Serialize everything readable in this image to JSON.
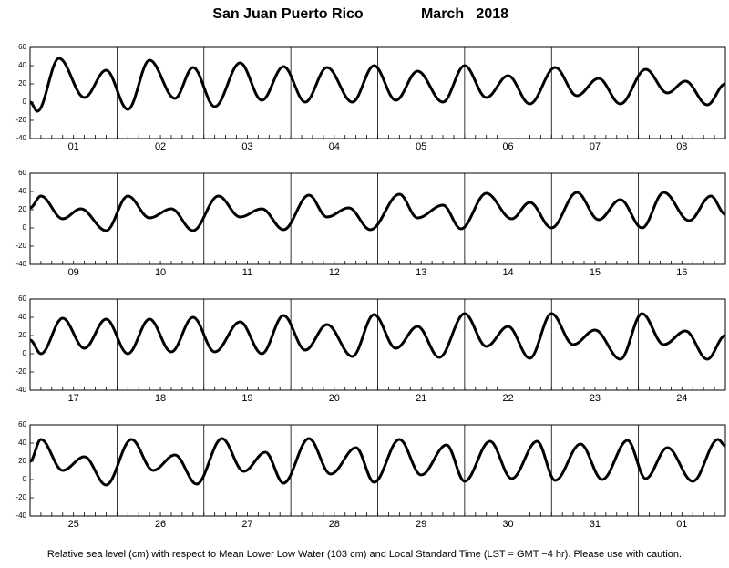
{
  "title": "San Juan Puerto Rico",
  "month": "March   2018",
  "note": "Relative sea level (cm) with respect to Mean Lower Low Water (103 cm) and Local Standard Time (LST = GMT −4 hr). Please use with caution.",
  "chart_data": [
    {
      "type": "line",
      "categories": [
        "01",
        "02",
        "03",
        "04",
        "05",
        "06",
        "07",
        "08"
      ],
      "x": [
        0,
        2,
        8,
        15,
        21,
        27,
        33,
        40,
        45,
        51,
        58,
        64,
        70,
        76,
        82,
        89,
        95,
        101,
        107,
        114,
        120,
        126,
        132,
        138,
        145,
        151,
        157,
        163,
        170,
        176,
        181,
        187,
        192
      ],
      "values": [
        0,
        -10,
        48,
        5,
        35,
        -8,
        46,
        4,
        38,
        -5,
        43,
        2,
        39,
        0,
        38,
        0,
        40,
        2,
        34,
        0,
        40,
        5,
        29,
        -2,
        38,
        7,
        26,
        -2,
        36,
        10,
        23,
        -3,
        20
      ],
      "xlim": [
        0,
        192
      ],
      "ylim": [
        -40,
        60
      ],
      "yticks": [
        -40,
        -20,
        0,
        20,
        40,
        60
      ],
      "color": "#000000"
    },
    {
      "type": "line",
      "categories": [
        "09",
        "10",
        "11",
        "12",
        "13",
        "14",
        "15",
        "16"
      ],
      "x": [
        0,
        3,
        9,
        14,
        21,
        27,
        33,
        39,
        45,
        52,
        58,
        64,
        70,
        77,
        82,
        88,
        94,
        102,
        107,
        114,
        119,
        126,
        133,
        138,
        144,
        151,
        157,
        163,
        169,
        175,
        182,
        188,
        192
      ],
      "values": [
        22,
        35,
        10,
        21,
        -3,
        35,
        11,
        21,
        -3,
        35,
        12,
        21,
        -2,
        36,
        12,
        22,
        -2,
        37,
        11,
        25,
        -1,
        38,
        10,
        28,
        0,
        39,
        9,
        31,
        0,
        39,
        8,
        35,
        15
      ],
      "xlim": [
        0,
        192
      ],
      "ylim": [
        -40,
        60
      ],
      "yticks": [
        -40,
        -20,
        0,
        20,
        40,
        60
      ],
      "color": "#000000"
    },
    {
      "type": "line",
      "categories": [
        "17",
        "18",
        "19",
        "20",
        "21",
        "22",
        "23",
        "24"
      ],
      "x": [
        0,
        3,
        9,
        15,
        21,
        27,
        33,
        39,
        45,
        51,
        58,
        64,
        70,
        76,
        82,
        89,
        95,
        101,
        107,
        113,
        120,
        126,
        132,
        138,
        144,
        150,
        156,
        163,
        169,
        175,
        181,
        187,
        192
      ],
      "values": [
        15,
        0,
        39,
        6,
        38,
        0,
        38,
        2,
        40,
        2,
        35,
        0,
        42,
        4,
        32,
        -3,
        43,
        6,
        30,
        -4,
        44,
        8,
        30,
        -5,
        44,
        10,
        26,
        -6,
        44,
        10,
        25,
        -6,
        20
      ],
      "xlim": [
        0,
        192
      ],
      "ylim": [
        -40,
        60
      ],
      "yticks": [
        -40,
        -20,
        0,
        20,
        40,
        60
      ],
      "color": "#000000"
    },
    {
      "type": "line",
      "categories": [
        "25",
        "26",
        "27",
        "28",
        "29",
        "30",
        "31",
        "01"
      ],
      "x": [
        0,
        3,
        9,
        15,
        21,
        28,
        34,
        40,
        46,
        53,
        59,
        65,
        70,
        77,
        83,
        90,
        95,
        102,
        108,
        115,
        120,
        127,
        133,
        140,
        145,
        152,
        158,
        165,
        170,
        176,
        183,
        190,
        192
      ],
      "values": [
        20,
        44,
        10,
        25,
        -6,
        44,
        10,
        27,
        -5,
        45,
        9,
        30,
        -4,
        45,
        6,
        35,
        -3,
        44,
        5,
        38,
        -2,
        42,
        1,
        42,
        -1,
        39,
        0,
        43,
        1,
        35,
        -2,
        44,
        37
      ],
      "xlim": [
        0,
        192
      ],
      "ylim": [
        -40,
        60
      ],
      "yticks": [
        -40,
        -20,
        0,
        20,
        40,
        60
      ],
      "color": "#000000"
    }
  ]
}
